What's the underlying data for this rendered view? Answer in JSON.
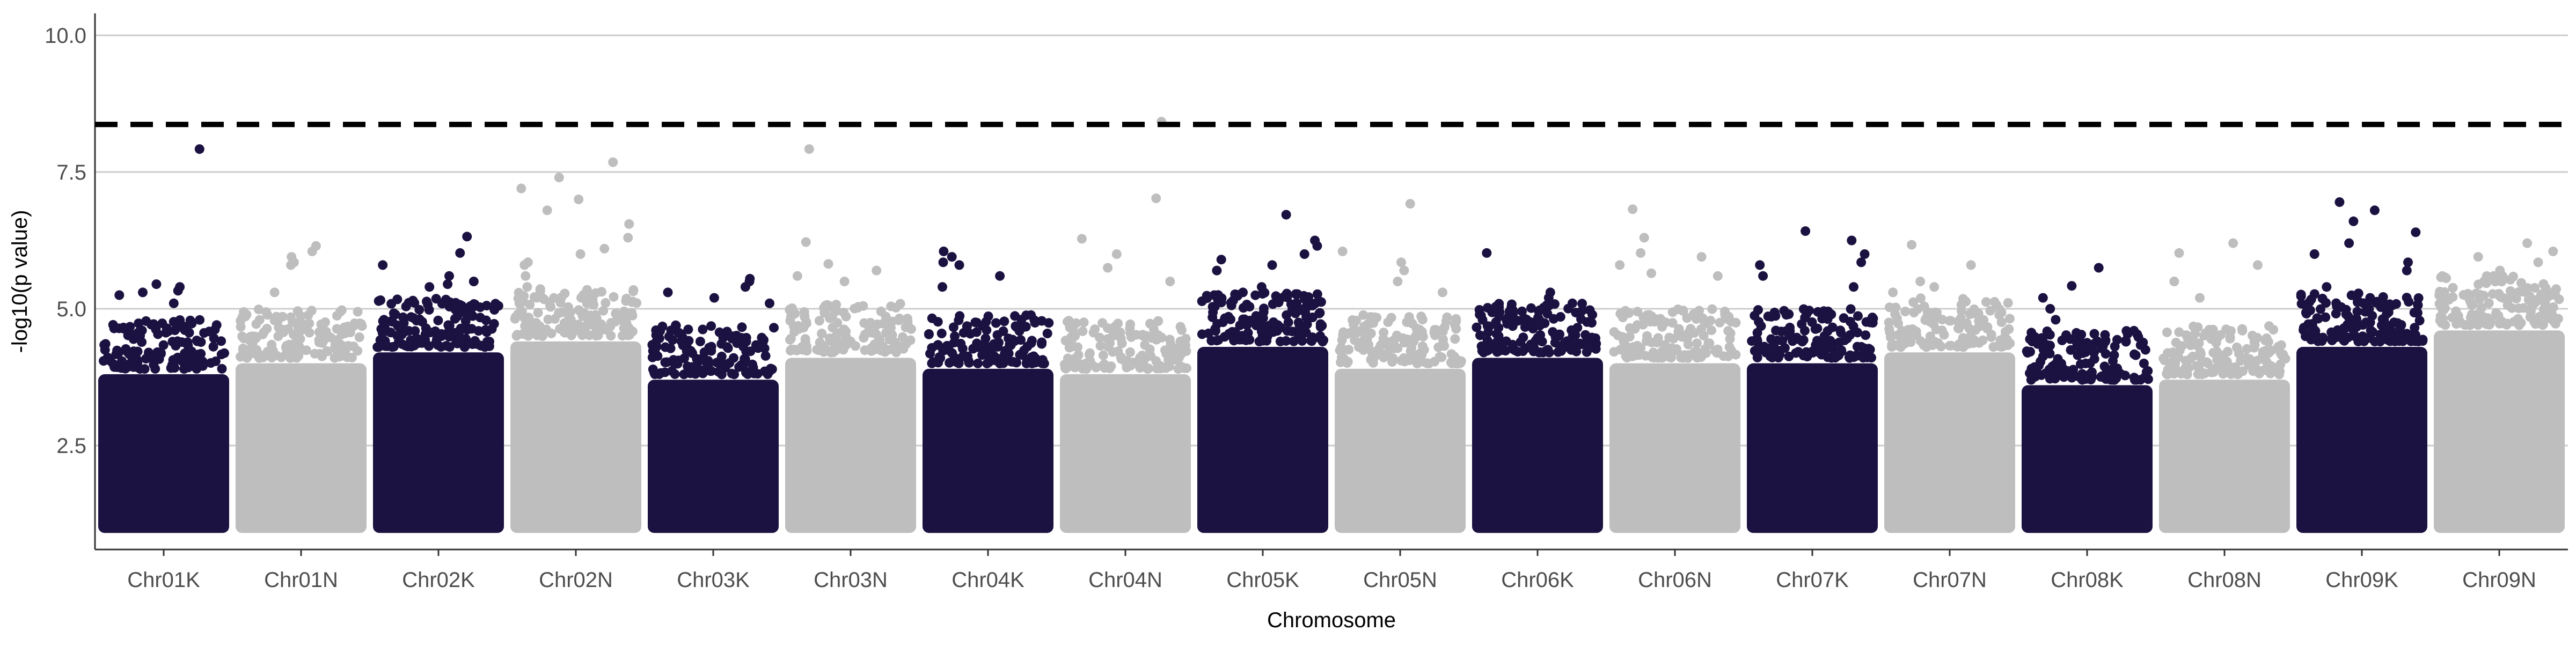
{
  "chart_data": {
    "type": "scatter",
    "subtype": "manhattan",
    "title": "",
    "xlabel": "Chromosome",
    "ylabel": "-log10(p value)",
    "ylim": [
      0.6,
      10.4
    ],
    "yticks": [
      2.5,
      5.0,
      7.5,
      10.0
    ],
    "ytick_labels": [
      "2.5",
      "5.0",
      "7.5",
      "10.0"
    ],
    "grid": "horizontal-major",
    "legend": "none",
    "threshold": {
      "value": 8.37,
      "style": "dashed",
      "color": "#000000"
    },
    "colors": {
      "dark": "#1c1241",
      "light": "#bebebe"
    },
    "chromosomes": [
      "Chr01K",
      "Chr01N",
      "Chr02K",
      "Chr02N",
      "Chr03K",
      "Chr03N",
      "Chr04K",
      "Chr04N",
      "Chr05K",
      "Chr05N",
      "Chr06K",
      "Chr06N",
      "Chr07K",
      "Chr07N",
      "Chr08K",
      "Chr08N",
      "Chr09K",
      "Chr09N"
    ],
    "series": [
      {
        "chromosome": "Chr01K",
        "color": "dark",
        "dense_range": [
          1.0,
          4.0
        ],
        "top_values": [
          7.92,
          5.45,
          5.4,
          5.33,
          5.3,
          5.25,
          5.1
        ]
      },
      {
        "chromosome": "Chr01N",
        "color": "light",
        "dense_range": [
          1.0,
          4.2
        ],
        "top_values": [
          6.15,
          6.05,
          5.95,
          5.85,
          5.8,
          5.3
        ]
      },
      {
        "chromosome": "Chr02K",
        "color": "dark",
        "dense_range": [
          1.0,
          4.4
        ],
        "top_values": [
          6.32,
          6.02,
          5.8,
          5.6,
          5.5,
          5.45,
          5.4
        ]
      },
      {
        "chromosome": "Chr02N",
        "color": "light",
        "dense_range": [
          1.0,
          4.6
        ],
        "top_values": [
          7.68,
          7.4,
          7.2,
          7.0,
          6.8,
          6.55,
          6.3,
          6.1,
          6.0,
          5.85,
          5.8,
          5.6,
          5.4
        ]
      },
      {
        "chromosome": "Chr03K",
        "color": "dark",
        "dense_range": [
          1.0,
          3.9
        ],
        "top_values": [
          5.55,
          5.5,
          5.4,
          5.3,
          5.2,
          5.1
        ]
      },
      {
        "chromosome": "Chr03N",
        "color": "light",
        "dense_range": [
          1.0,
          4.3
        ],
        "top_values": [
          7.92,
          6.22,
          5.82,
          5.7,
          5.6,
          5.5
        ]
      },
      {
        "chromosome": "Chr04K",
        "color": "dark",
        "dense_range": [
          1.0,
          4.1
        ],
        "top_values": [
          6.05,
          5.95,
          5.85,
          5.8,
          5.6,
          5.4
        ]
      },
      {
        "chromosome": "Chr04N",
        "color": "light",
        "dense_range": [
          1.0,
          4.0
        ],
        "top_values": [
          8.42,
          7.02,
          6.28,
          6.0,
          5.75,
          5.5
        ]
      },
      {
        "chromosome": "Chr05K",
        "color": "dark",
        "dense_range": [
          1.0,
          4.5
        ],
        "top_values": [
          6.72,
          6.25,
          6.15,
          6.0,
          5.9,
          5.8,
          5.7,
          5.4,
          5.3
        ]
      },
      {
        "chromosome": "Chr05N",
        "color": "light",
        "dense_range": [
          1.0,
          4.1
        ],
        "top_values": [
          6.92,
          6.05,
          5.85,
          5.7,
          5.5,
          5.3
        ]
      },
      {
        "chromosome": "Chr06K",
        "color": "dark",
        "dense_range": [
          1.0,
          4.3
        ],
        "top_values": [
          6.02,
          5.3,
          5.2,
          5.1,
          5.0,
          4.95
        ]
      },
      {
        "chromosome": "Chr06N",
        "color": "light",
        "dense_range": [
          1.0,
          4.2
        ],
        "top_values": [
          6.82,
          6.3,
          6.02,
          5.95,
          5.8,
          5.65,
          5.6
        ]
      },
      {
        "chromosome": "Chr07K",
        "color": "dark",
        "dense_range": [
          1.0,
          4.2
        ],
        "top_values": [
          6.42,
          6.25,
          6.0,
          5.85,
          5.8,
          5.6,
          5.4
        ]
      },
      {
        "chromosome": "Chr07N",
        "color": "light",
        "dense_range": [
          1.0,
          4.4
        ],
        "top_values": [
          6.17,
          5.8,
          5.5,
          5.4,
          5.3
        ]
      },
      {
        "chromosome": "Chr08K",
        "color": "dark",
        "dense_range": [
          1.0,
          3.8
        ],
        "top_values": [
          5.75,
          5.42,
          5.2,
          5.0,
          4.8
        ]
      },
      {
        "chromosome": "Chr08N",
        "color": "light",
        "dense_range": [
          1.0,
          3.9
        ],
        "top_values": [
          6.2,
          6.02,
          5.8,
          5.5,
          5.2
        ]
      },
      {
        "chromosome": "Chr09K",
        "color": "dark",
        "dense_range": [
          1.0,
          4.5
        ],
        "top_values": [
          6.95,
          6.8,
          6.6,
          6.4,
          6.2,
          6.0,
          5.85,
          5.7,
          5.4
        ]
      },
      {
        "chromosome": "Chr09N",
        "color": "light",
        "dense_range": [
          1.0,
          4.8
        ],
        "top_values": [
          6.2,
          6.05,
          5.95,
          5.85,
          5.7,
          5.6
        ]
      }
    ]
  }
}
